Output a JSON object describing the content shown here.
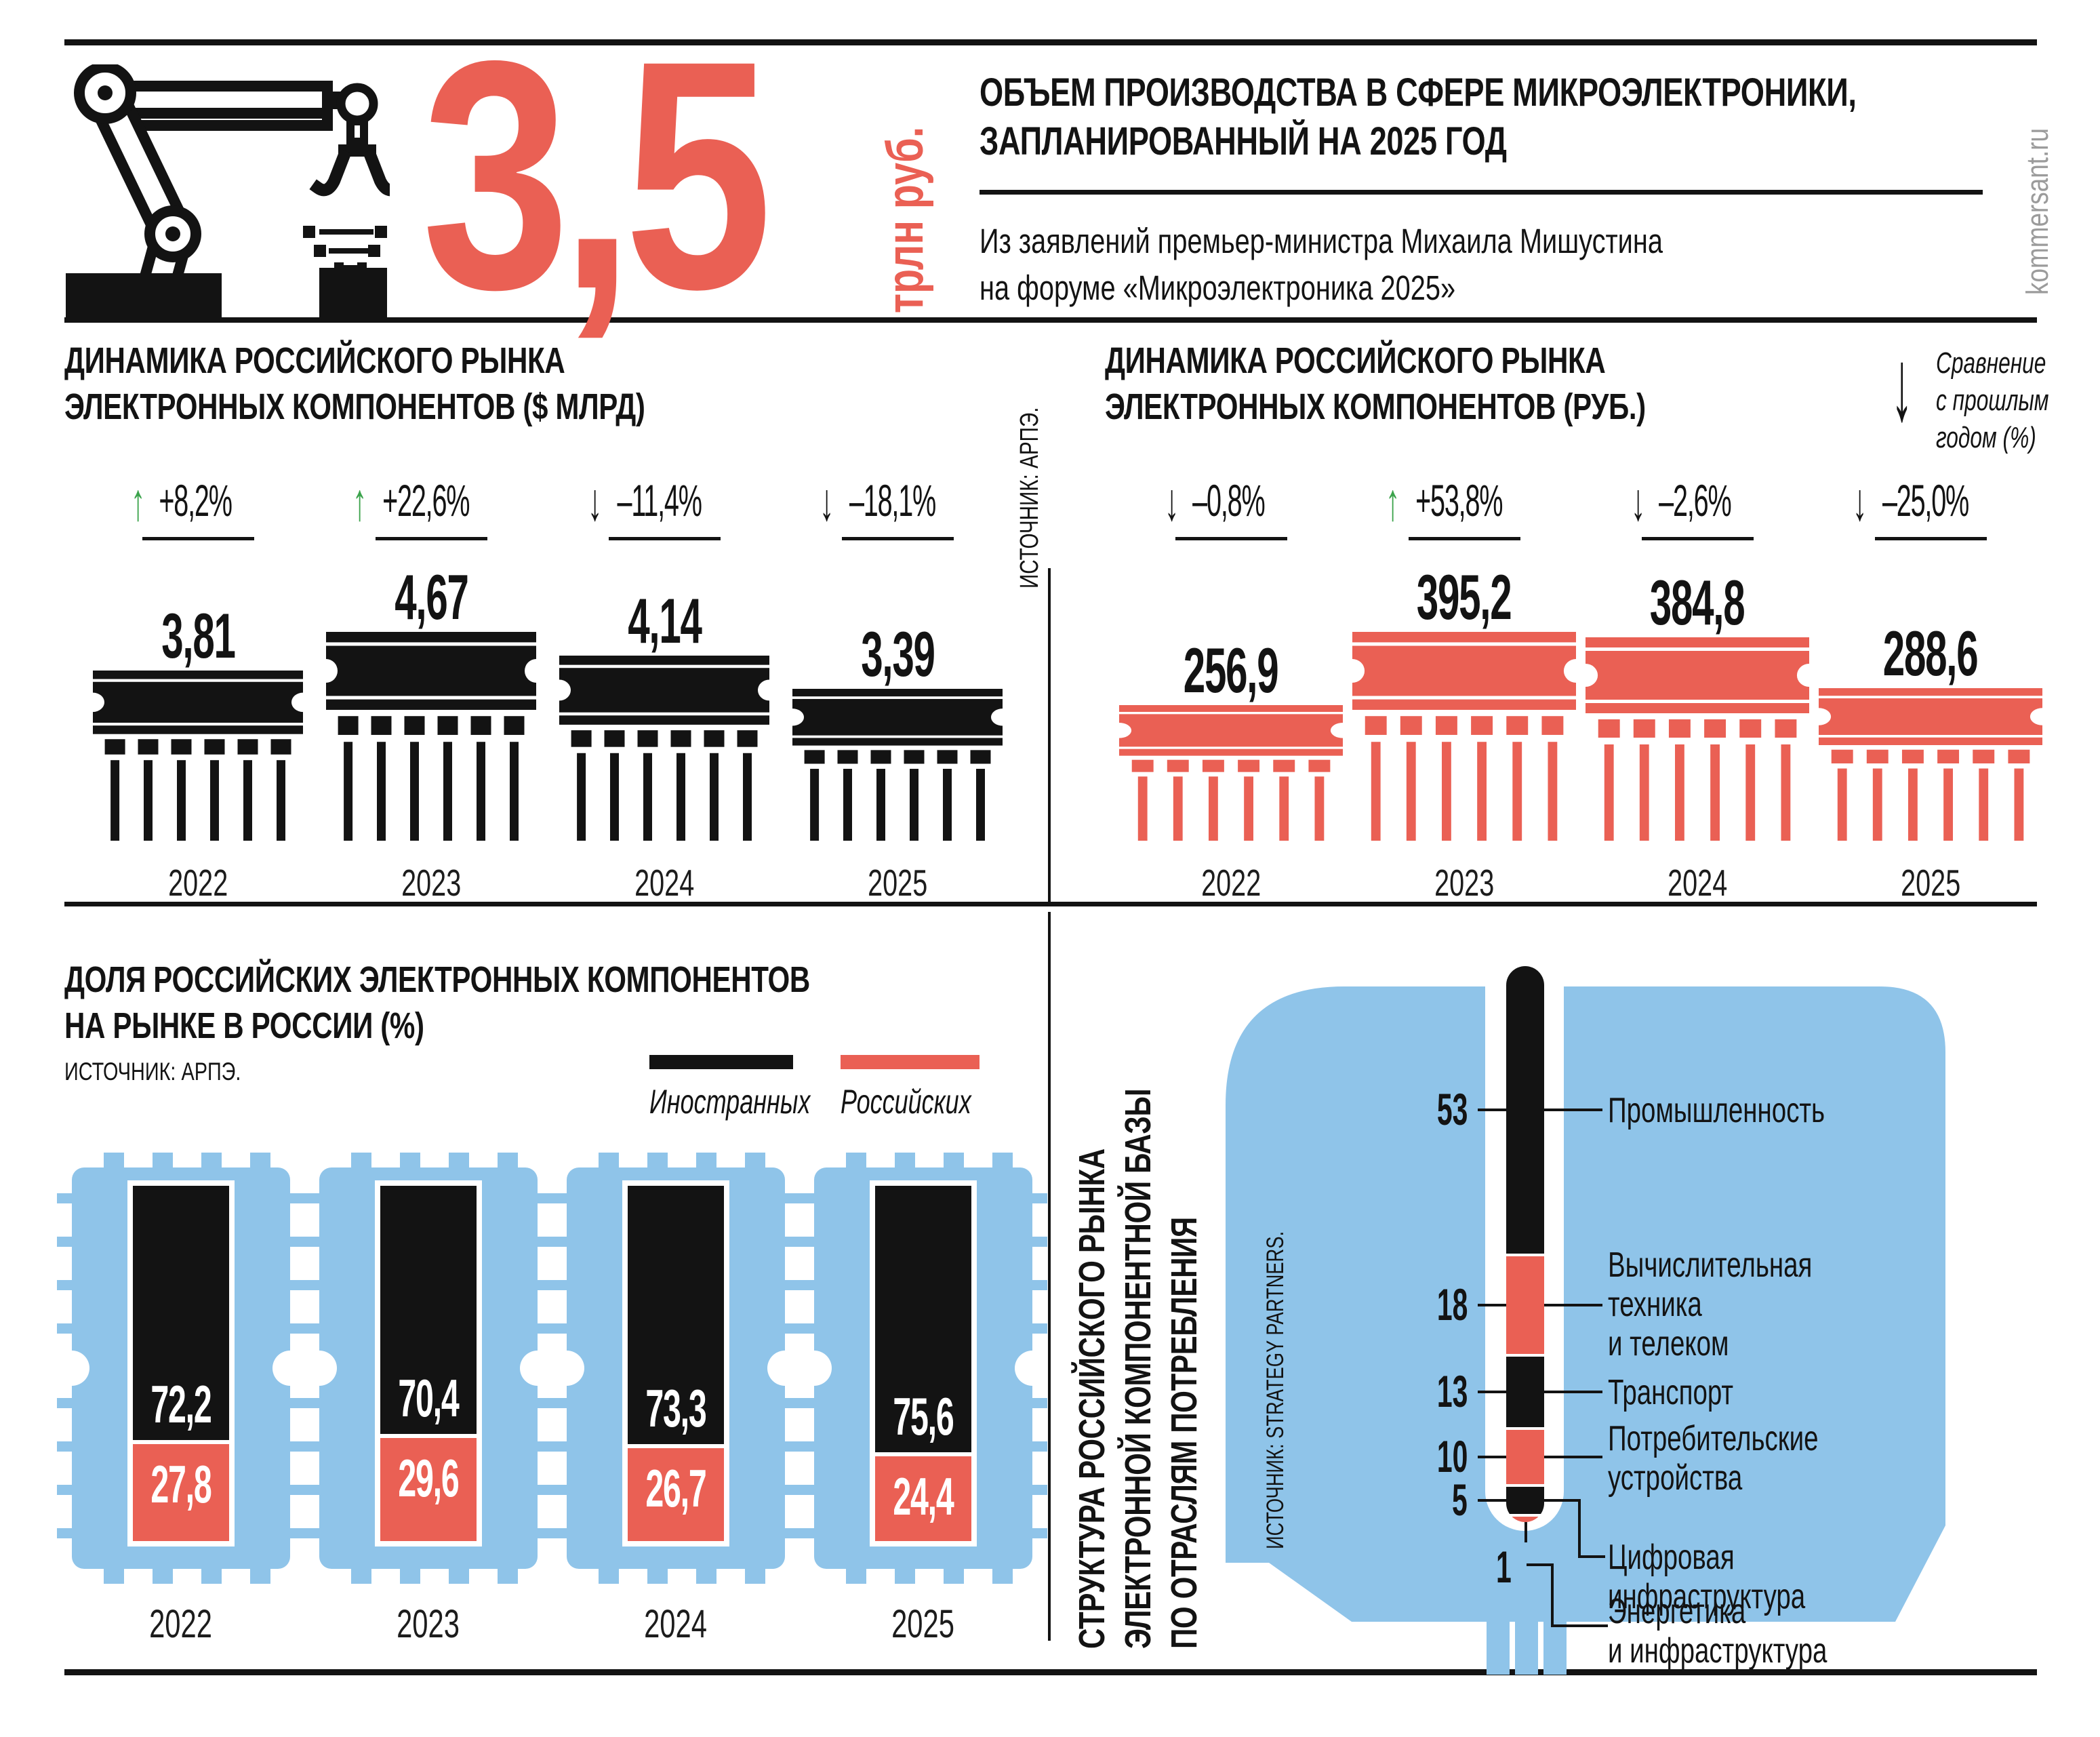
{
  "brand": {
    "site": "kommersant.ru"
  },
  "colors": {
    "accent_red": "#EA6054",
    "chip_blue": "#8FC4E9",
    "arrow_green": "#3BA34B",
    "ink": "#131313",
    "brand_gray": "#9B9B9B"
  },
  "header": {
    "big_number": "3,5",
    "big_number_unit": "трлн руб.",
    "title_lines": [
      "ОБЪЕМ ПРОИЗВОДСТВА В СФЕРЕ МИКРОЭЛЕКТРОНИКИ,",
      "ЗАПЛАНИРОВАННЫЙ НА 2025 ГОД"
    ],
    "subtitle_lines": [
      "Из заявлений премьер-министра Михаила Мишустина",
      "на форуме «Микроэлектроника 2025»"
    ]
  },
  "chart_data": [
    {
      "id": "usd",
      "type": "bar",
      "title_lines": [
        "ДИНАМИКА РОССИЙСКОГО РЫНКА",
        "ЭЛЕКТРОННЫХ КОМПОНЕНТОВ ($ МЛРД)"
      ],
      "source_vertical": "ИСТОЧНИК: АРПЭ.",
      "categories": [
        "2022",
        "2023",
        "2024",
        "2025"
      ],
      "values": [
        3.81,
        4.67,
        4.14,
        3.39
      ],
      "value_labels": [
        "3,81",
        "4,67",
        "4,14",
        "3,39"
      ],
      "change_labels": [
        "+8,2%",
        "+22,6%",
        "–11,4%",
        "–18,1%"
      ],
      "change_direction": [
        "up",
        "up",
        "down",
        "down"
      ],
      "bar_color": "#131313",
      "ylabel": "$ млрд",
      "grid": false
    },
    {
      "id": "rub",
      "type": "bar",
      "title_lines": [
        "ДИНАМИКА РОССИЙСКОГО РЫНКА",
        "ЭЛЕКТРОННЫХ КОМПОНЕНТОВ (РУБ.)"
      ],
      "legend_note_lines": [
        "Сравнение",
        "с прошлым",
        "годом (%)"
      ],
      "categories": [
        "2022",
        "2023",
        "2024",
        "2025"
      ],
      "values": [
        256.9,
        395.2,
        384.8,
        288.6
      ],
      "value_labels": [
        "256,9",
        "395,2",
        "384,8",
        "288,6"
      ],
      "change_labels": [
        "–0,8%",
        "+53,8%",
        "–2,6%",
        "–25,0%"
      ],
      "change_direction": [
        "down",
        "up",
        "down",
        "down"
      ],
      "bar_color": "#EA6054",
      "ylabel": "руб.",
      "grid": false
    },
    {
      "id": "share",
      "type": "stacked-bar",
      "title_lines": [
        "ДОЛЯ РОССИЙСКИХ ЭЛЕКТРОННЫХ КОМПОНЕНТОВ",
        "НА РЫНКЕ В РОССИИ (%)"
      ],
      "source": "ИСТОЧНИК: АРПЭ.",
      "legend": [
        {
          "label": "Иностранных",
          "color": "#131313"
        },
        {
          "label": "Российских",
          "color": "#EA6054"
        }
      ],
      "categories": [
        "2022",
        "2023",
        "2024",
        "2025"
      ],
      "series": [
        {
          "name": "Иностранных",
          "values": [
            72.2,
            70.4,
            73.3,
            75.6
          ],
          "labels": [
            "72,2",
            "70,4",
            "73,3",
            "75,6"
          ],
          "color": "#131313"
        },
        {
          "name": "Российских",
          "values": [
            27.8,
            29.6,
            26.7,
            24.4
          ],
          "labels": [
            "27,8",
            "29,6",
            "26,7",
            "24,4"
          ],
          "color": "#EA6054"
        }
      ],
      "ylim": [
        0,
        100
      ]
    },
    {
      "id": "structure",
      "type": "stacked-column",
      "title_lines": [
        "СТРУКТУРА РОССИЙСКОГО РЫНКА",
        "ЭЛЕКТРОННОЙ КОМПОНЕНТНОЙ БАЗЫ",
        "ПО ОТРАСЛЯМ ПОТРЕБЛЕНИЯ"
      ],
      "source_vertical": "ИСТОЧНИК: STRATEGY PARTNERS.",
      "segments": [
        {
          "value": 53,
          "label": "53",
          "name": "Промышленность",
          "name_lines": [
            "Промышленность"
          ],
          "color": "#131313"
        },
        {
          "value": 18,
          "label": "18",
          "name": "Вычислительная техника и телеком",
          "name_lines": [
            "Вычислительная",
            "техника",
            "и телеком"
          ],
          "color": "#EA6054"
        },
        {
          "value": 13,
          "label": "13",
          "name": "Транспорт",
          "name_lines": [
            "Транспорт"
          ],
          "color": "#131313"
        },
        {
          "value": 10,
          "label": "10",
          "name": "Потребительские устройства",
          "name_lines": [
            "Потребительские",
            "устройства"
          ],
          "color": "#EA6054"
        },
        {
          "value": 5,
          "label": "5",
          "name": "Цифровая инфраструктура",
          "name_lines": [
            "Цифровая",
            "инфраструктура"
          ],
          "color": "#131313"
        },
        {
          "value": 1,
          "label": "1",
          "name": "Энергетика и инфраструктура",
          "name_lines": [
            "Энергетика",
            "и инфраструктура"
          ],
          "color": "#EA6054"
        }
      ],
      "total": 100
    }
  ]
}
